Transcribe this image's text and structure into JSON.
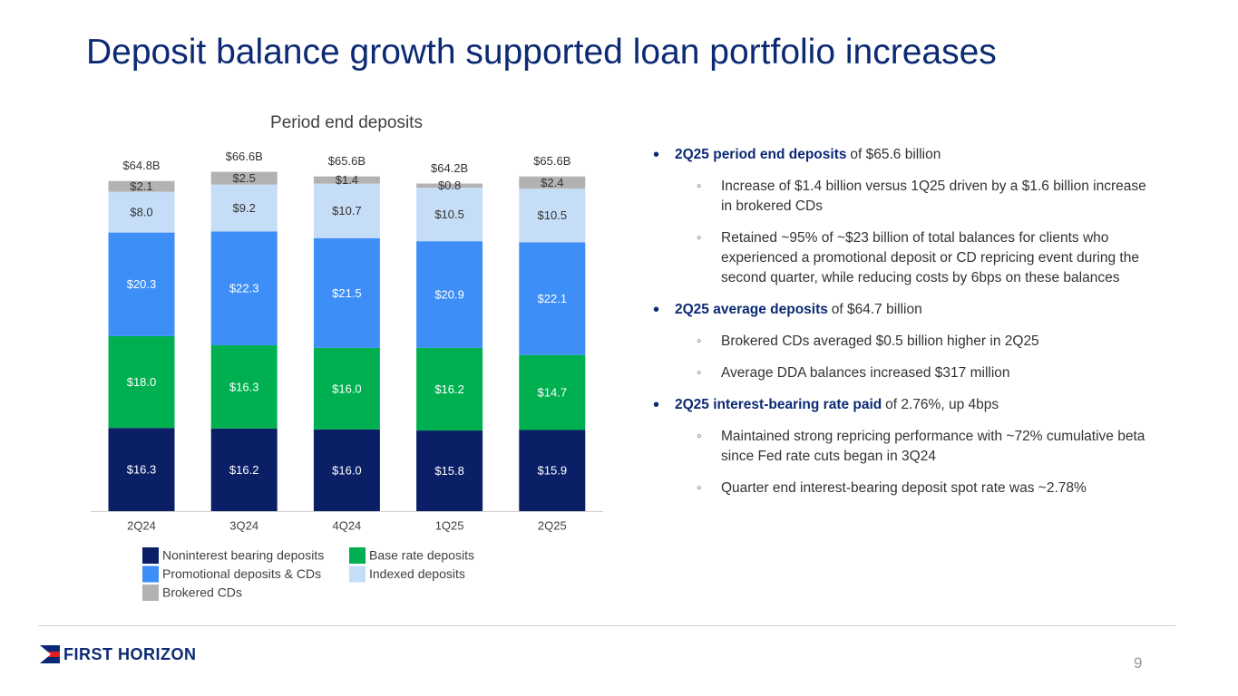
{
  "title": "Deposit balance growth supported loan portfolio increases",
  "chart_data": {
    "type": "stacked-bar",
    "title": "Period end deposits",
    "categories": [
      "2Q24",
      "3Q24",
      "4Q24",
      "1Q25",
      "2Q25"
    ],
    "series": [
      {
        "name": "Noninterest bearing deposits",
        "color": "#0b1f66",
        "values": [
          16.3,
          16.2,
          16.0,
          15.8,
          15.9
        ],
        "value_labels": [
          "$16.3",
          "$16.2",
          "$16.0",
          "$15.8",
          "$15.9"
        ]
      },
      {
        "name": "Base rate deposits",
        "color": "#00b050",
        "values": [
          18.0,
          16.3,
          16.0,
          16.2,
          14.7
        ],
        "value_labels": [
          "$18.0",
          "$16.3",
          "$16.0",
          "$16.2",
          "$14.7"
        ]
      },
      {
        "name": "Promotional deposits & CDs",
        "color": "#3d8ef7",
        "values": [
          20.3,
          22.3,
          21.5,
          20.9,
          22.1
        ],
        "value_labels": [
          "$20.3",
          "$22.3",
          "$21.5",
          "$20.9",
          "$22.1"
        ]
      },
      {
        "name": "Indexed deposits",
        "color": "#c6ddf7",
        "values": [
          8.0,
          9.2,
          10.7,
          10.5,
          10.5
        ],
        "value_labels": [
          "$8.0",
          "$9.2",
          "$10.7",
          "$10.5",
          "$10.5"
        ]
      },
      {
        "name": "Brokered CDs",
        "color": "#b2b2b2",
        "values": [
          2.1,
          2.5,
          1.4,
          0.8,
          2.4
        ],
        "value_labels": [
          "$2.1",
          "$2.5",
          "$1.4",
          "$0.8",
          "$2.4"
        ]
      }
    ],
    "totals": {
      "values": [
        64.8,
        66.6,
        65.6,
        64.2,
        65.6
      ],
      "value_labels": [
        "$64.8B",
        "$66.6B",
        "$65.6B",
        "$64.2B",
        "$65.6B"
      ]
    }
  },
  "bullets": [
    {
      "lead": "2Q25 period end deposits",
      "text": "of $65.6 billion",
      "subs": [
        "Increase of $1.4 billion versus 1Q25 driven by a $1.6 billion increase in brokered CDs",
        "Retained ~95% of ~$23 billion of total balances for clients who experienced a promotional deposit or CD repricing event during the second quarter, while reducing costs by 6bps on these balances"
      ]
    },
    {
      "lead": "2Q25 average deposits",
      "text": "of $64.7 billion",
      "subs": [
        "Brokered CDs averaged $0.5 billion higher in 2Q25",
        "Average DDA balances increased $317 million"
      ]
    },
    {
      "lead": "2Q25 interest-bearing rate paid",
      "text": "of 2.76%, up 4bps",
      "subs": [
        "Maintained strong repricing performance with ~72% cumulative beta since Fed rate cuts began in 3Q24",
        "Quarter end interest-bearing deposit spot rate was ~2.78%"
      ]
    }
  ],
  "footer": {
    "logo": "FIRST HORIZON",
    "page": "9"
  }
}
